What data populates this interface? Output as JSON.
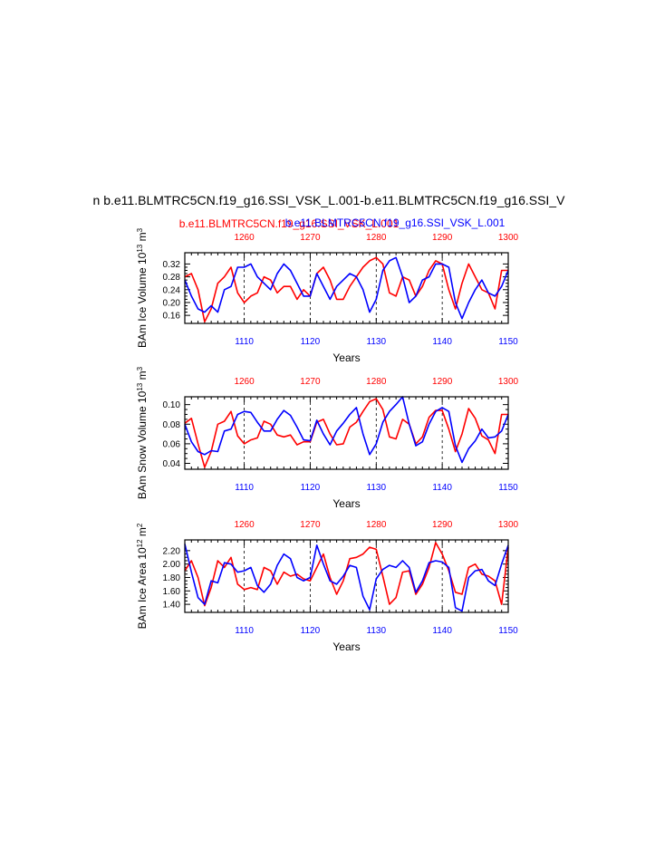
{
  "page": {
    "main_title": "n b.e11.BLMTRC5CN.f19_g16.SSI_VSK_L.001-b.e11.BLMTRC5CN.f19_g16.SSI_V",
    "legend_red": "b.e11.BLMTRC5CN.f19_g16.SSI_VSK_L.001",
    "legend_blue": "b.e11.BLMTRC5CN.f19_g16.SSI_VSK_L.001"
  },
  "colors": {
    "red": "#ff0000",
    "blue": "#0000ff",
    "axis": "#000000",
    "grid": "#000000"
  },
  "chart_data": [
    {
      "type": "line",
      "ylabel": "BAm Ice Volume 10^13 m^3",
      "xlabel": "Years",
      "ylim": [
        0.135,
        0.355
      ],
      "yticks": [
        "0.16",
        "0.20",
        "0.24",
        "0.28",
        "0.32"
      ],
      "ytick_values": [
        0.16,
        0.2,
        0.24,
        0.28,
        0.32
      ],
      "x_bottom": {
        "range": [
          1101,
          1150
        ],
        "ticks": [
          "1110",
          "1120",
          "1130",
          "1140",
          "1150"
        ],
        "tick_values": [
          1110,
          1120,
          1130,
          1140,
          1150
        ]
      },
      "x_top": {
        "range": [
          1251,
          1300
        ],
        "ticks": [
          "1260",
          "1270",
          "1280",
          "1290",
          "1300"
        ],
        "tick_values": [
          1260,
          1270,
          1280,
          1290,
          1300
        ]
      },
      "dashed_verticals": [
        1110,
        1120,
        1130,
        1140
      ],
      "series": [
        {
          "color": "red",
          "axis": "top",
          "start": 1251,
          "values": [
            0.28,
            0.29,
            0.24,
            0.14,
            0.18,
            0.26,
            0.28,
            0.31,
            0.23,
            0.2,
            0.22,
            0.23,
            0.28,
            0.27,
            0.23,
            0.25,
            0.25,
            0.21,
            0.24,
            0.22,
            0.29,
            0.31,
            0.27,
            0.21,
            0.21,
            0.25,
            0.28,
            0.31,
            0.33,
            0.34,
            0.32,
            0.23,
            0.22,
            0.28,
            0.27,
            0.22,
            0.25,
            0.3,
            0.33,
            0.32,
            0.24,
            0.18,
            0.26,
            0.32,
            0.28,
            0.24,
            0.23,
            0.18,
            0.3,
            0.3
          ]
        },
        {
          "color": "blue",
          "axis": "bottom",
          "start": 1101,
          "values": [
            0.27,
            0.22,
            0.18,
            0.17,
            0.19,
            0.17,
            0.24,
            0.25,
            0.31,
            0.31,
            0.32,
            0.28,
            0.26,
            0.24,
            0.29,
            0.32,
            0.3,
            0.26,
            0.22,
            0.22,
            0.29,
            0.25,
            0.21,
            0.25,
            0.27,
            0.29,
            0.28,
            0.24,
            0.17,
            0.21,
            0.3,
            0.33,
            0.34,
            0.28,
            0.2,
            0.22,
            0.27,
            0.28,
            0.32,
            0.32,
            0.31,
            0.2,
            0.15,
            0.2,
            0.24,
            0.27,
            0.23,
            0.22,
            0.25,
            0.3
          ]
        }
      ]
    },
    {
      "type": "line",
      "ylabel": "BAm Snow Volume 10^13 m^3",
      "xlabel": "Years",
      "ylim": [
        0.034,
        0.108
      ],
      "yticks": [
        "0.04",
        "0.06",
        "0.08",
        "0.10"
      ],
      "ytick_values": [
        0.04,
        0.06,
        0.08,
        0.1
      ],
      "x_bottom": {
        "range": [
          1101,
          1150
        ],
        "ticks": [
          "1110",
          "1120",
          "1130",
          "1140",
          "1150"
        ],
        "tick_values": [
          1110,
          1120,
          1130,
          1140,
          1150
        ]
      },
      "x_top": {
        "range": [
          1251,
          1300
        ],
        "ticks": [
          "1260",
          "1270",
          "1280",
          "1290",
          "1300"
        ],
        "tick_values": [
          1260,
          1270,
          1280,
          1290,
          1300
        ]
      },
      "dashed_verticals": [
        1110,
        1120,
        1130,
        1140
      ],
      "series": [
        {
          "color": "red",
          "axis": "top",
          "start": 1251,
          "values": [
            0.081,
            0.086,
            0.06,
            0.036,
            0.052,
            0.08,
            0.083,
            0.093,
            0.068,
            0.06,
            0.064,
            0.066,
            0.083,
            0.08,
            0.069,
            0.067,
            0.069,
            0.059,
            0.062,
            0.062,
            0.082,
            0.085,
            0.07,
            0.059,
            0.06,
            0.077,
            0.082,
            0.093,
            0.103,
            0.106,
            0.095,
            0.067,
            0.065,
            0.085,
            0.08,
            0.06,
            0.067,
            0.087,
            0.094,
            0.094,
            0.075,
            0.052,
            0.07,
            0.096,
            0.086,
            0.068,
            0.064,
            0.05,
            0.09,
            0.09
          ]
        },
        {
          "color": "blue",
          "axis": "bottom",
          "start": 1101,
          "values": [
            0.08,
            0.062,
            0.052,
            0.049,
            0.053,
            0.052,
            0.073,
            0.075,
            0.09,
            0.093,
            0.092,
            0.082,
            0.073,
            0.073,
            0.085,
            0.094,
            0.089,
            0.077,
            0.064,
            0.063,
            0.084,
            0.07,
            0.059,
            0.073,
            0.081,
            0.09,
            0.097,
            0.07,
            0.049,
            0.06,
            0.082,
            0.093,
            0.1,
            0.108,
            0.08,
            0.058,
            0.062,
            0.08,
            0.093,
            0.097,
            0.093,
            0.058,
            0.041,
            0.055,
            0.063,
            0.075,
            0.066,
            0.067,
            0.073,
            0.09
          ]
        }
      ]
    },
    {
      "type": "line",
      "ylabel": "BAm Ice Area 10^12 m^2",
      "xlabel": "Years",
      "ylim": [
        1.28,
        2.36
      ],
      "yticks": [
        "1.40",
        "1.60",
        "1.80",
        "2.00",
        "2.20"
      ],
      "ytick_values": [
        1.4,
        1.6,
        1.8,
        2.0,
        2.2
      ],
      "x_bottom": {
        "range": [
          1101,
          1150
        ],
        "ticks": [
          "1110",
          "1120",
          "1130",
          "1140",
          "1150"
        ],
        "tick_values": [
          1110,
          1120,
          1130,
          1140,
          1150
        ]
      },
      "x_top": {
        "range": [
          1251,
          1300
        ],
        "ticks": [
          "1260",
          "1270",
          "1280",
          "1290",
          "1300"
        ],
        "tick_values": [
          1260,
          1270,
          1280,
          1290,
          1300
        ]
      },
      "dashed_verticals": [
        1110,
        1120,
        1130,
        1140
      ],
      "series": [
        {
          "color": "red",
          "axis": "top",
          "start": 1251,
          "values": [
            1.9,
            2.05,
            1.8,
            1.38,
            1.65,
            2.05,
            1.95,
            2.1,
            1.7,
            1.62,
            1.65,
            1.62,
            1.95,
            1.9,
            1.7,
            1.88,
            1.82,
            1.85,
            1.78,
            1.75,
            1.95,
            2.15,
            1.8,
            1.55,
            1.75,
            2.08,
            2.1,
            2.15,
            2.25,
            2.22,
            1.82,
            1.4,
            1.5,
            1.88,
            1.9,
            1.55,
            1.7,
            1.95,
            2.32,
            2.15,
            1.9,
            1.58,
            1.55,
            1.95,
            2.0,
            1.85,
            1.82,
            1.75,
            1.4,
            2.25
          ]
        },
        {
          "color": "blue",
          "axis": "bottom",
          "start": 1101,
          "values": [
            2.3,
            1.88,
            1.5,
            1.4,
            1.75,
            1.72,
            2.02,
            2.0,
            1.88,
            1.9,
            1.95,
            1.68,
            1.58,
            1.7,
            1.98,
            2.15,
            2.08,
            1.8,
            1.75,
            1.8,
            2.28,
            2.0,
            1.75,
            1.7,
            1.82,
            1.98,
            1.95,
            1.52,
            1.32,
            1.78,
            1.92,
            1.98,
            1.95,
            2.05,
            1.95,
            1.58,
            1.75,
            2.02,
            2.05,
            2.03,
            1.95,
            1.35,
            1.3,
            1.8,
            1.9,
            1.92,
            1.75,
            1.68,
            2.0,
            2.28
          ]
        }
      ]
    }
  ]
}
